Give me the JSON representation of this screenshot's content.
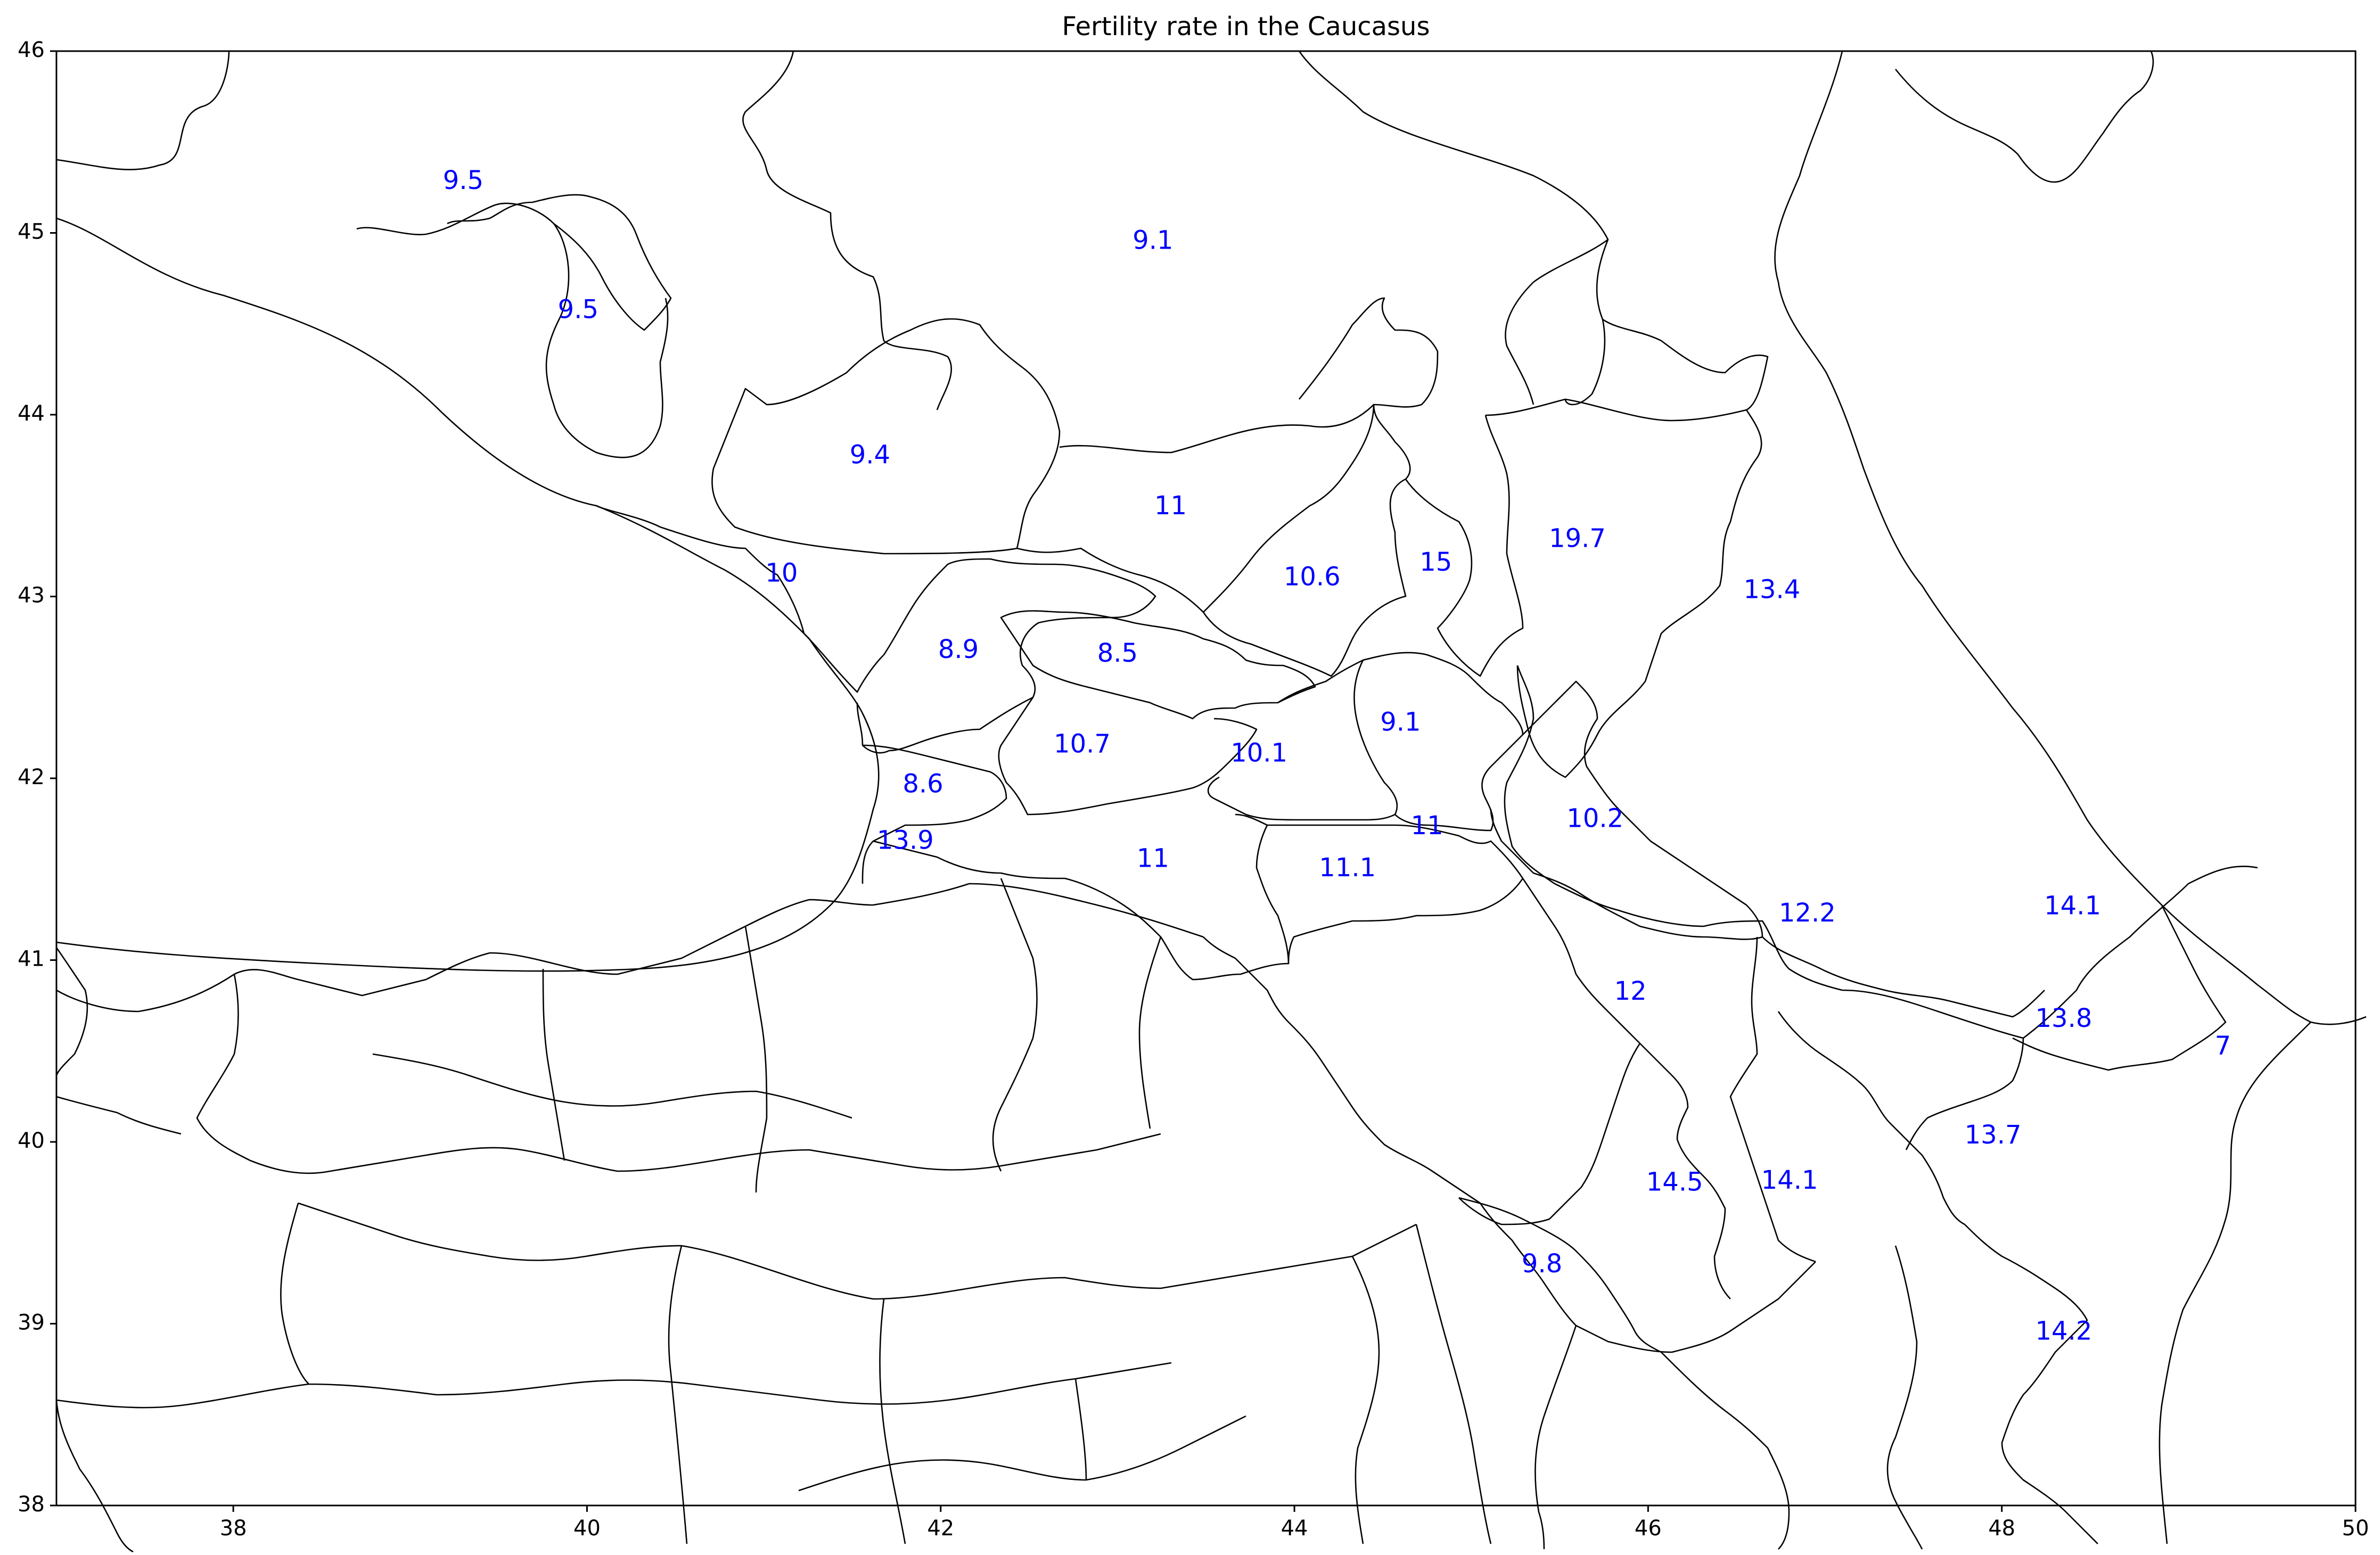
{
  "chart_data": {
    "type": "map",
    "title": "Fertility rate in the Caucasus",
    "xlim": [
      37,
      50
    ],
    "ylim": [
      38,
      46
    ],
    "x_ticks": [
      38,
      40,
      42,
      44,
      46,
      48,
      50
    ],
    "y_ticks": [
      38,
      39,
      40,
      41,
      42,
      43,
      44,
      45,
      46
    ],
    "label_color": "#0000ff",
    "boundary_color": "#000000",
    "labels": [
      {
        "lon": 39.3,
        "lat": 45.28,
        "value": "9.5"
      },
      {
        "lon": 39.95,
        "lat": 44.57,
        "value": "9.5"
      },
      {
        "lon": 43.2,
        "lat": 44.95,
        "value": "9.1"
      },
      {
        "lon": 41.6,
        "lat": 43.77,
        "value": "9.4"
      },
      {
        "lon": 43.3,
        "lat": 43.49,
        "value": "11"
      },
      {
        "lon": 41.1,
        "lat": 43.12,
        "value": "10"
      },
      {
        "lon": 44.1,
        "lat": 43.1,
        "value": "10.6"
      },
      {
        "lon": 44.8,
        "lat": 43.18,
        "value": "15"
      },
      {
        "lon": 45.6,
        "lat": 43.31,
        "value": "19.7"
      },
      {
        "lon": 46.7,
        "lat": 43.03,
        "value": "13.4"
      },
      {
        "lon": 42.1,
        "lat": 42.7,
        "value": "8.9"
      },
      {
        "lon": 43.0,
        "lat": 42.68,
        "value": "8.5"
      },
      {
        "lon": 42.8,
        "lat": 42.18,
        "value": "10.7"
      },
      {
        "lon": 43.8,
        "lat": 42.13,
        "value": "10.1"
      },
      {
        "lon": 44.6,
        "lat": 42.3,
        "value": "9.1"
      },
      {
        "lon": 41.9,
        "lat": 41.96,
        "value": "8.6"
      },
      {
        "lon": 41.8,
        "lat": 41.65,
        "value": "13.9"
      },
      {
        "lon": 44.75,
        "lat": 41.73,
        "value": "11"
      },
      {
        "lon": 45.7,
        "lat": 41.77,
        "value": "10.2"
      },
      {
        "lon": 43.2,
        "lat": 41.55,
        "value": "11"
      },
      {
        "lon": 44.3,
        "lat": 41.5,
        "value": "11.1"
      },
      {
        "lon": 46.9,
        "lat": 41.25,
        "value": "12.2"
      },
      {
        "lon": 48.4,
        "lat": 41.29,
        "value": "14.1"
      },
      {
        "lon": 45.9,
        "lat": 40.82,
        "value": "12"
      },
      {
        "lon": 48.35,
        "lat": 40.67,
        "value": "13.8"
      },
      {
        "lon": 49.25,
        "lat": 40.52,
        "value": "7"
      },
      {
        "lon": 47.95,
        "lat": 40.03,
        "value": "13.7"
      },
      {
        "lon": 46.15,
        "lat": 39.77,
        "value": "14.5"
      },
      {
        "lon": 46.8,
        "lat": 39.78,
        "value": "14.1"
      },
      {
        "lon": 45.4,
        "lat": 39.32,
        "value": "9.8"
      },
      {
        "lon": 48.35,
        "lat": 38.95,
        "value": "14.2"
      }
    ]
  }
}
